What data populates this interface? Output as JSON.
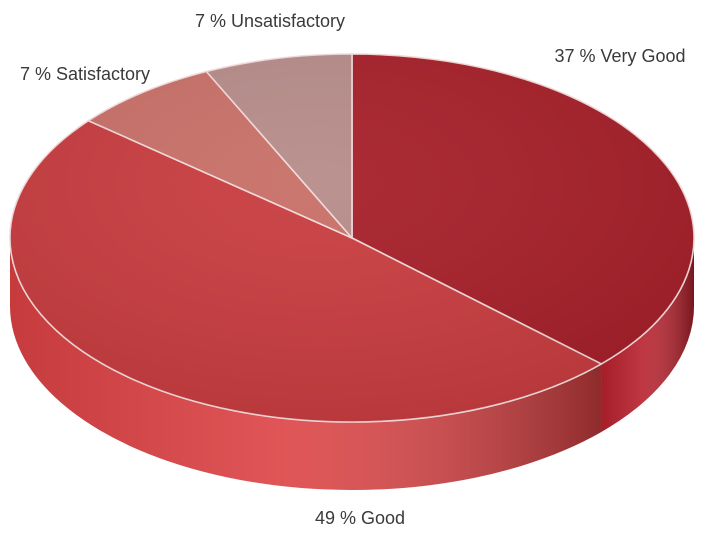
{
  "chart_data": {
    "type": "pie",
    "style": "3d",
    "title": "",
    "slices": [
      {
        "label": "37 % Very Good",
        "value": 37,
        "color": "#c1232f"
      },
      {
        "label": "49 % Good",
        "value": 49,
        "color": "#e84548"
      },
      {
        "label": "7 % Satisfactory",
        "value": 7,
        "color": "#e88178"
      },
      {
        "label": "7 % Unsatisfactory",
        "value": 7,
        "color": "#d4a3a1"
      }
    ]
  }
}
